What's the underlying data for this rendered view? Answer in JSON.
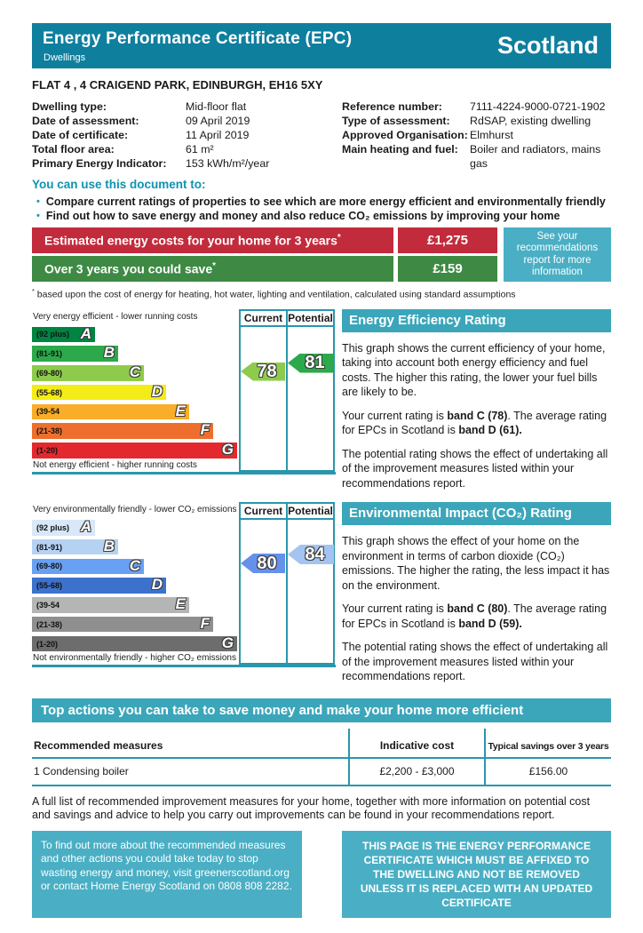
{
  "colors": {
    "header_teal": "#0f7f9e",
    "banner_teal": "#3ba6ba",
    "box_teal": "#4aafc4",
    "line_teal": "#2a96ac",
    "teal_text": "#0e93b0",
    "cost_red": "#c22b3c",
    "cost_green": "#3e8a44"
  },
  "header": {
    "title": "Energy Performance Certificate (EPC)",
    "subtitle": "Dwellings",
    "region": "Scotland"
  },
  "address": "FLAT 4 , 4 CRAIGEND PARK, EDINBURGH, EH16 5XY",
  "details": {
    "left": [
      {
        "label": "Dwelling type:",
        "value": "Mid-floor flat"
      },
      {
        "label": "Date of assessment:",
        "value": "09 April 2019"
      },
      {
        "label": "Date of certificate:",
        "value": "11 April 2019"
      },
      {
        "label": "Total floor area:",
        "value": "61 m²"
      },
      {
        "label": "Primary Energy Indicator:",
        "value": "153 kWh/m²/year"
      }
    ],
    "right": [
      {
        "label": "Reference number:",
        "value": "7111-4224-9000-0721-1902"
      },
      {
        "label": "Type of assessment:",
        "value": "RdSAP, existing dwelling"
      },
      {
        "label": "Approved Organisation:",
        "value": "Elmhurst"
      },
      {
        "label": "Main heating and fuel:",
        "value": "Boiler and radiators, mains gas"
      }
    ]
  },
  "usage": {
    "heading": "You can use this document to:",
    "bullet_glyph": "•",
    "bullets": [
      "Compare current ratings of properties to see which are more energy efficient and environmentally friendly",
      "Find out how to save energy and money and also reduce CO₂ emissions by improving your home"
    ]
  },
  "costs": {
    "rows": [
      {
        "label": "Estimated energy costs for your home for 3 years",
        "mark": "*",
        "value": "£1,275"
      },
      {
        "label": "Over 3 years you could save",
        "mark": "*",
        "value": "£159"
      }
    ],
    "side_note": "See your recommendations report for more information",
    "footnote_mark": "*",
    "footnote": " based upon the cost of energy for heating, hot water, lighting and ventilation, calculated using standard assumptions"
  },
  "chart_data": [
    {
      "type": "epc-band-scale",
      "title": "Energy Efficiency Rating",
      "top_label": "Very energy efficient - lower running costs",
      "bottom_label": "Not energy efficient - higher running costs",
      "columns": [
        "Current",
        "Potential"
      ],
      "bands": [
        {
          "letter": "A",
          "range": "(92 plus)",
          "color": "#008442"
        },
        {
          "letter": "B",
          "range": "(81-91)",
          "color": "#2ca94a"
        },
        {
          "letter": "C",
          "range": "(69-80)",
          "color": "#8ecb4c"
        },
        {
          "letter": "D",
          "range": "(55-68)",
          "color": "#f3ec18"
        },
        {
          "letter": "E",
          "range": "(39-54",
          "color": "#f9ad29"
        },
        {
          "letter": "F",
          "range": "(21-38)",
          "color": "#ee6f2d"
        },
        {
          "letter": "G",
          "range": "(1-20)",
          "color": "#e4292e"
        }
      ],
      "current": {
        "value": 78,
        "band": "C",
        "color": "#8ecb4c"
      },
      "potential": {
        "value": 81,
        "band": "B",
        "color": "#2ca94a"
      }
    },
    {
      "type": "epc-band-scale",
      "title": "Environmental Impact (CO₂) Rating",
      "top_label": "Very environmentally friendly - lower CO₂ emissions",
      "bottom_label": "Not environmentally friendly - higher CO₂ emissions",
      "columns": [
        "Current",
        "Potential"
      ],
      "bands": [
        {
          "letter": "A",
          "range": "(92 plus)",
          "color": "#d8e8f8"
        },
        {
          "letter": "B",
          "range": "(81-91)",
          "color": "#b6d2f2"
        },
        {
          "letter": "C",
          "range": "(69-80)",
          "color": "#68a0f3"
        },
        {
          "letter": "D",
          "range": "(55-68)",
          "color": "#3d72cc"
        },
        {
          "letter": "E",
          "range": "(39-54",
          "color": "#b5b5b5"
        },
        {
          "letter": "F",
          "range": "(21-38)",
          "color": "#8f8f8f"
        },
        {
          "letter": "G",
          "range": "(1-20)",
          "color": "#6d6d6d"
        }
      ],
      "current": {
        "value": 80,
        "band": "C",
        "color": "#6590ec"
      },
      "potential": {
        "value": 84,
        "band": "B",
        "color": "#a3c4f1"
      }
    }
  ],
  "panels": [
    {
      "title": "Energy Efficiency Rating",
      "p1": "This graph shows the current efficiency of your home, taking into account both energy efficiency and fuel costs. The higher this rating, the lower your fuel bills are likely to be.",
      "p2_plain1": "Your current rating is ",
      "p2_bold1": "band C (78)",
      "p2_plain2": ". The average rating for EPCs in Scotland is ",
      "p2_bold2": "band D (61).",
      "p3": "The potential rating shows the effect of undertaking all of the improvement measures listed within your recommendations report."
    },
    {
      "title": "Environmental Impact (CO₂) Rating",
      "p1": "This graph shows the effect of your home on the environment in terms of carbon dioxide (CO₂) emissions. The higher the rating, the less impact it has on the environment.",
      "p2_plain1": "Your current rating is ",
      "p2_bold1": "band C (80)",
      "p2_plain2": ". The average rating for EPCs in Scotland is ",
      "p2_bold2": "band D (59).",
      "p3": "The potential rating shows the effect of undertaking all of the improvement measures listed within your recommendations report."
    }
  ],
  "actions": {
    "banner": "Top actions you can take to save money and make your home more efficient",
    "table": {
      "headers": [
        "Recommended measures",
        "Indicative cost",
        "Typical savings over 3 years"
      ],
      "rows": [
        {
          "measure": "1 Condensing boiler",
          "cost": "£2,200 - £3,000",
          "savings": "£156.00"
        }
      ]
    },
    "note": "A full list of recommended improvement measures for your home, together with more information on potential cost and savings and advice to help you carry out improvements can be found in your recommendations report."
  },
  "footer": {
    "info_box": "To find out more about the recommended measures and other actions you could take today to stop wasting energy and money, visit greenerscotland.org or contact Home Energy Scotland on 0808 808 2282.",
    "notice_box": "THIS PAGE IS THE ENERGY PERFORMANCE CERTIFICATE WHICH MUST BE AFFIXED TO THE DWELLING AND NOT BE REMOVED UNLESS IT IS REPLACED WITH AN UPDATED CERTIFICATE"
  }
}
